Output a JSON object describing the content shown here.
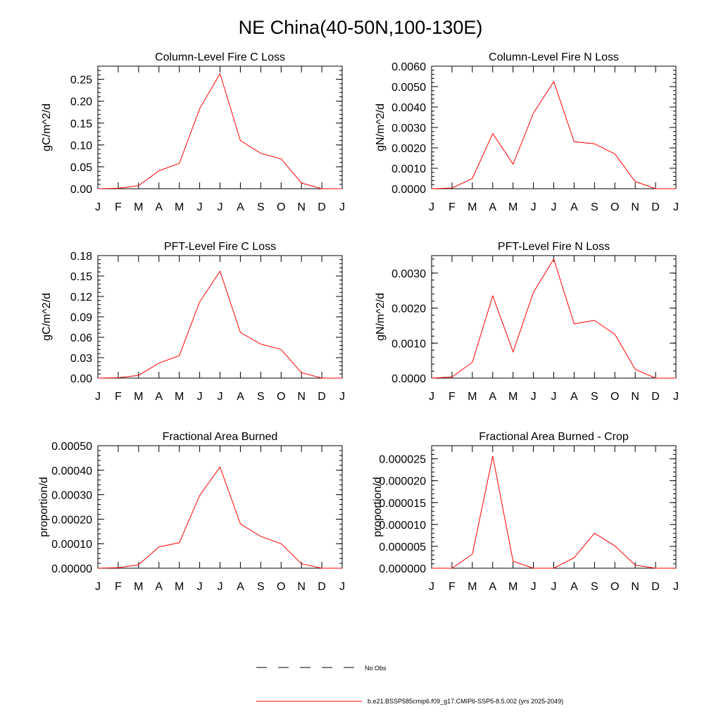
{
  "figure": {
    "title": "NE China(40-50N,100-130E)"
  },
  "legend": {
    "entries": [
      {
        "label": "No Obs",
        "style": "dashed",
        "color": "#000000"
      },
      {
        "label": "b.e21.BSSP585cmip6.f09_g17.CMIP6-SSP5-8.5.002 (yrs 2025-2049)",
        "style": "solid",
        "color": "#ff0000"
      }
    ]
  },
  "colors": {
    "series": "#ff0000",
    "axes": "#000000"
  },
  "chart_data": [
    {
      "type": "line",
      "title": "Column-Level Fire C Loss",
      "ylabel": "gC/m^2/d",
      "xlabel": "",
      "x_tick_labels": [
        "J",
        "F",
        "M",
        "A",
        "M",
        "J",
        "J",
        "A",
        "S",
        "O",
        "N",
        "D",
        "J"
      ],
      "ylim": [
        0,
        0.28
      ],
      "y_ticks": [
        "0.00",
        "0.05",
        "0.10",
        "0.15",
        "0.20",
        "0.25"
      ],
      "series": [
        {
          "name": "b.e21.BSSP585cmip6.f09_g17.CMIP6-SSP5-8.5.002 (yrs 2025-2049)",
          "values": [
            0.0,
            0.001,
            0.007,
            0.041,
            0.058,
            0.183,
            0.263,
            0.11,
            0.081,
            0.068,
            0.013,
            0.0,
            0.0
          ]
        }
      ]
    },
    {
      "type": "line",
      "title": "Column-Level Fire N Loss",
      "ylabel": "gN/m^2/d",
      "xlabel": "",
      "x_tick_labels": [
        "J",
        "F",
        "M",
        "A",
        "M",
        "J",
        "J",
        "A",
        "S",
        "O",
        "N",
        "D",
        "J"
      ],
      "ylim": [
        0,
        0.006
      ],
      "y_ticks": [
        "0.0000",
        "0.0010",
        "0.0020",
        "0.0030",
        "0.0040",
        "0.0050",
        "0.0060"
      ],
      "series": [
        {
          "name": "b.e21.BSSP585cmip6.f09_g17.CMIP6-SSP5-8.5.002 (yrs 2025-2049)",
          "values": [
            0.0,
            3e-05,
            0.0005,
            0.0027,
            0.0012,
            0.0037,
            0.00525,
            0.0023,
            0.0022,
            0.0017,
            0.00035,
            0.0,
            0.0
          ]
        }
      ]
    },
    {
      "type": "line",
      "title": "PFT-Level Fire C Loss",
      "ylabel": "gC/m^2/d",
      "xlabel": "",
      "x_tick_labels": [
        "J",
        "F",
        "M",
        "A",
        "M",
        "J",
        "J",
        "A",
        "S",
        "O",
        "N",
        "D",
        "J"
      ],
      "ylim": [
        0,
        0.18
      ],
      "y_ticks": [
        "0.00",
        "0.03",
        "0.06",
        "0.09",
        "0.12",
        "0.15",
        "0.18"
      ],
      "series": [
        {
          "name": "b.e21.BSSP585cmip6.f09_g17.CMIP6-SSP5-8.5.002 (yrs 2025-2049)",
          "values": [
            0.0,
            0.0005,
            0.004,
            0.022,
            0.033,
            0.112,
            0.157,
            0.067,
            0.05,
            0.042,
            0.008,
            0.0,
            0.0
          ]
        }
      ]
    },
    {
      "type": "line",
      "title": "PFT-Level Fire N Loss",
      "ylabel": "gN/m^2/d",
      "xlabel": "",
      "x_tick_labels": [
        "J",
        "F",
        "M",
        "A",
        "M",
        "J",
        "J",
        "A",
        "S",
        "O",
        "N",
        "D",
        "J"
      ],
      "ylim": [
        0,
        0.0035
      ],
      "y_ticks": [
        "0.0000",
        "0.0010",
        "0.0020",
        "0.0030"
      ],
      "series": [
        {
          "name": "b.e21.BSSP585cmip6.f09_g17.CMIP6-SSP5-8.5.002 (yrs 2025-2049)",
          "values": [
            0.0,
            3e-05,
            0.00045,
            0.00235,
            0.00075,
            0.00245,
            0.0034,
            0.00155,
            0.00165,
            0.00125,
            0.00025,
            0.0,
            0.0
          ]
        }
      ]
    },
    {
      "type": "line",
      "title": "Fractional Area Burned",
      "ylabel": "proportion/d",
      "xlabel": "",
      "x_tick_labels": [
        "J",
        "F",
        "M",
        "A",
        "M",
        "J",
        "J",
        "A",
        "S",
        "O",
        "N",
        "D",
        "J"
      ],
      "ylim": [
        0,
        0.0005
      ],
      "y_ticks": [
        "0.00000",
        "0.00010",
        "0.00020",
        "0.00030",
        "0.00040",
        "0.00050"
      ],
      "series": [
        {
          "name": "b.e21.BSSP585cmip6.f09_g17.CMIP6-SSP5-8.5.002 (yrs 2025-2049)",
          "values": [
            0.0,
            2e-06,
            1.4e-05,
            8.7e-05,
            0.000104,
            0.000297,
            0.000413,
            0.000181,
            0.00013,
            0.0001,
            1.8e-05,
            0.0,
            0.0
          ]
        }
      ]
    },
    {
      "type": "line",
      "title": "Fractional Area Burned - Crop",
      "ylabel": "proportion/d",
      "xlabel": "",
      "x_tick_labels": [
        "J",
        "F",
        "M",
        "A",
        "M",
        "J",
        "J",
        "A",
        "S",
        "O",
        "N",
        "D",
        "J"
      ],
      "ylim": [
        0,
        2.8e-05
      ],
      "y_ticks": [
        "0.000000",
        "0.000005",
        "0.000010",
        "0.000015",
        "0.000020",
        "0.000025"
      ],
      "series": [
        {
          "name": "b.e21.BSSP585cmip6.f09_g17.CMIP6-SSP5-8.5.002 (yrs 2025-2049)",
          "values": [
            0.0,
            0.0,
            3.2e-06,
            2.56e-05,
            1.6e-06,
            0.0,
            0.0,
            2.4e-06,
            8e-06,
            5.1e-06,
            7e-07,
            0.0,
            0.0
          ]
        }
      ]
    }
  ]
}
